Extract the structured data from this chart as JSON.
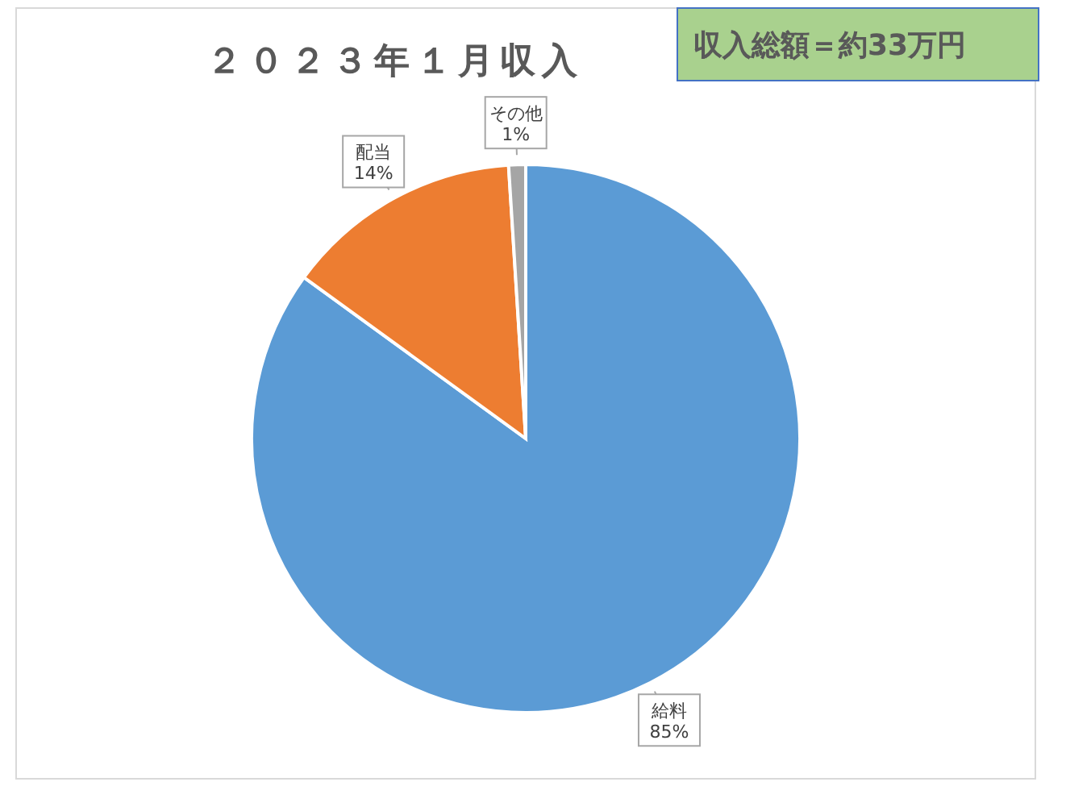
{
  "chart_data": {
    "type": "pie",
    "title": "２０２３年１月収入",
    "categories": [
      "給料",
      "配当",
      "その他"
    ],
    "values": [
      85,
      14,
      1
    ],
    "colors": [
      "#5b9bd5",
      "#ed7d31",
      "#a5a5a5"
    ],
    "value_labels": [
      "85%",
      "14%",
      "1%"
    ],
    "annotations": [
      "収入総額＝約33万円"
    ]
  }
}
